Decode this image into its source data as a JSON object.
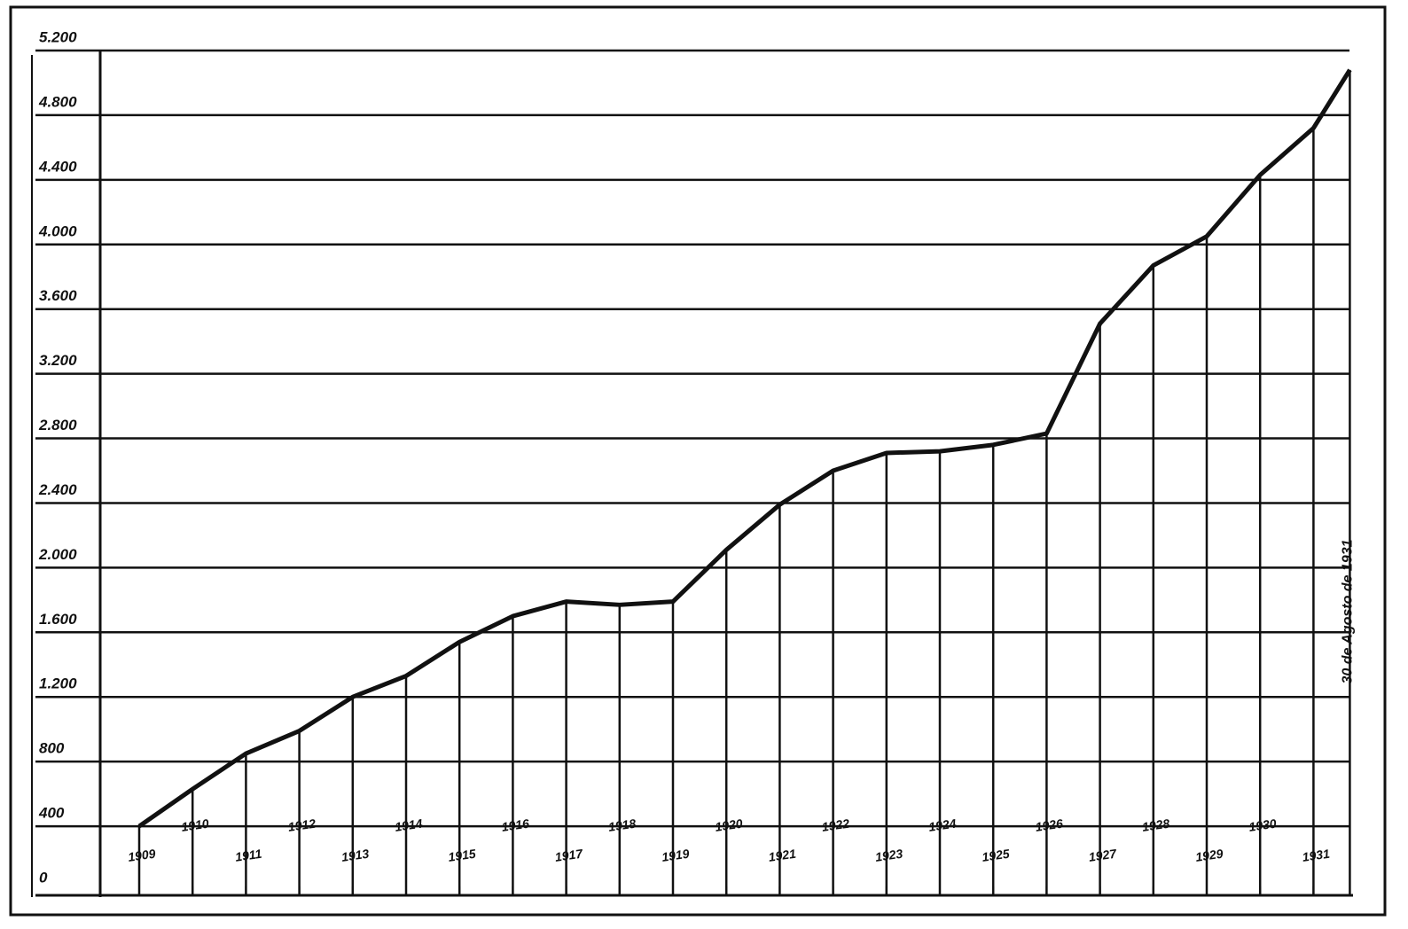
{
  "chart_data": {
    "type": "line",
    "categories": [
      "1909",
      "1910",
      "1911",
      "1912",
      "1913",
      "1914",
      "1915",
      "1916",
      "1917",
      "1918",
      "1919",
      "1920",
      "1921",
      "1922",
      "1923",
      "1924",
      "1925",
      "1926",
      "1927",
      "1928",
      "1929",
      "1930",
      "1931",
      "30 de Agosto de 1931"
    ],
    "values": [
      400,
      630,
      850,
      990,
      1200,
      1330,
      1540,
      1700,
      1790,
      1770,
      1790,
      2110,
      2390,
      2600,
      2710,
      2720,
      2760,
      2830,
      3510,
      3870,
      4050,
      4430,
      4720,
      5080
    ],
    "color": "#111111",
    "ylim": [
      0,
      5200
    ],
    "yticks": [
      0,
      400,
      800,
      {
        "value": 1200,
        "label": "1.200"
      },
      {
        "value": 1600,
        "label": "1.600"
      },
      {
        "value": 2000,
        "label": "2.000"
      },
      {
        "value": 2400,
        "label": "2.400"
      },
      {
        "value": 2800,
        "label": "2.800"
      },
      {
        "value": 3200,
        "label": "3.200"
      },
      {
        "value": 3600,
        "label": "3.600"
      },
      {
        "value": 4000,
        "label": "4.000"
      },
      {
        "value": 4400,
        "label": "4.400"
      },
      {
        "value": 4800,
        "label": "4.800"
      },
      {
        "value": 5200,
        "label": "5.200"
      }
    ],
    "grid": true
  }
}
